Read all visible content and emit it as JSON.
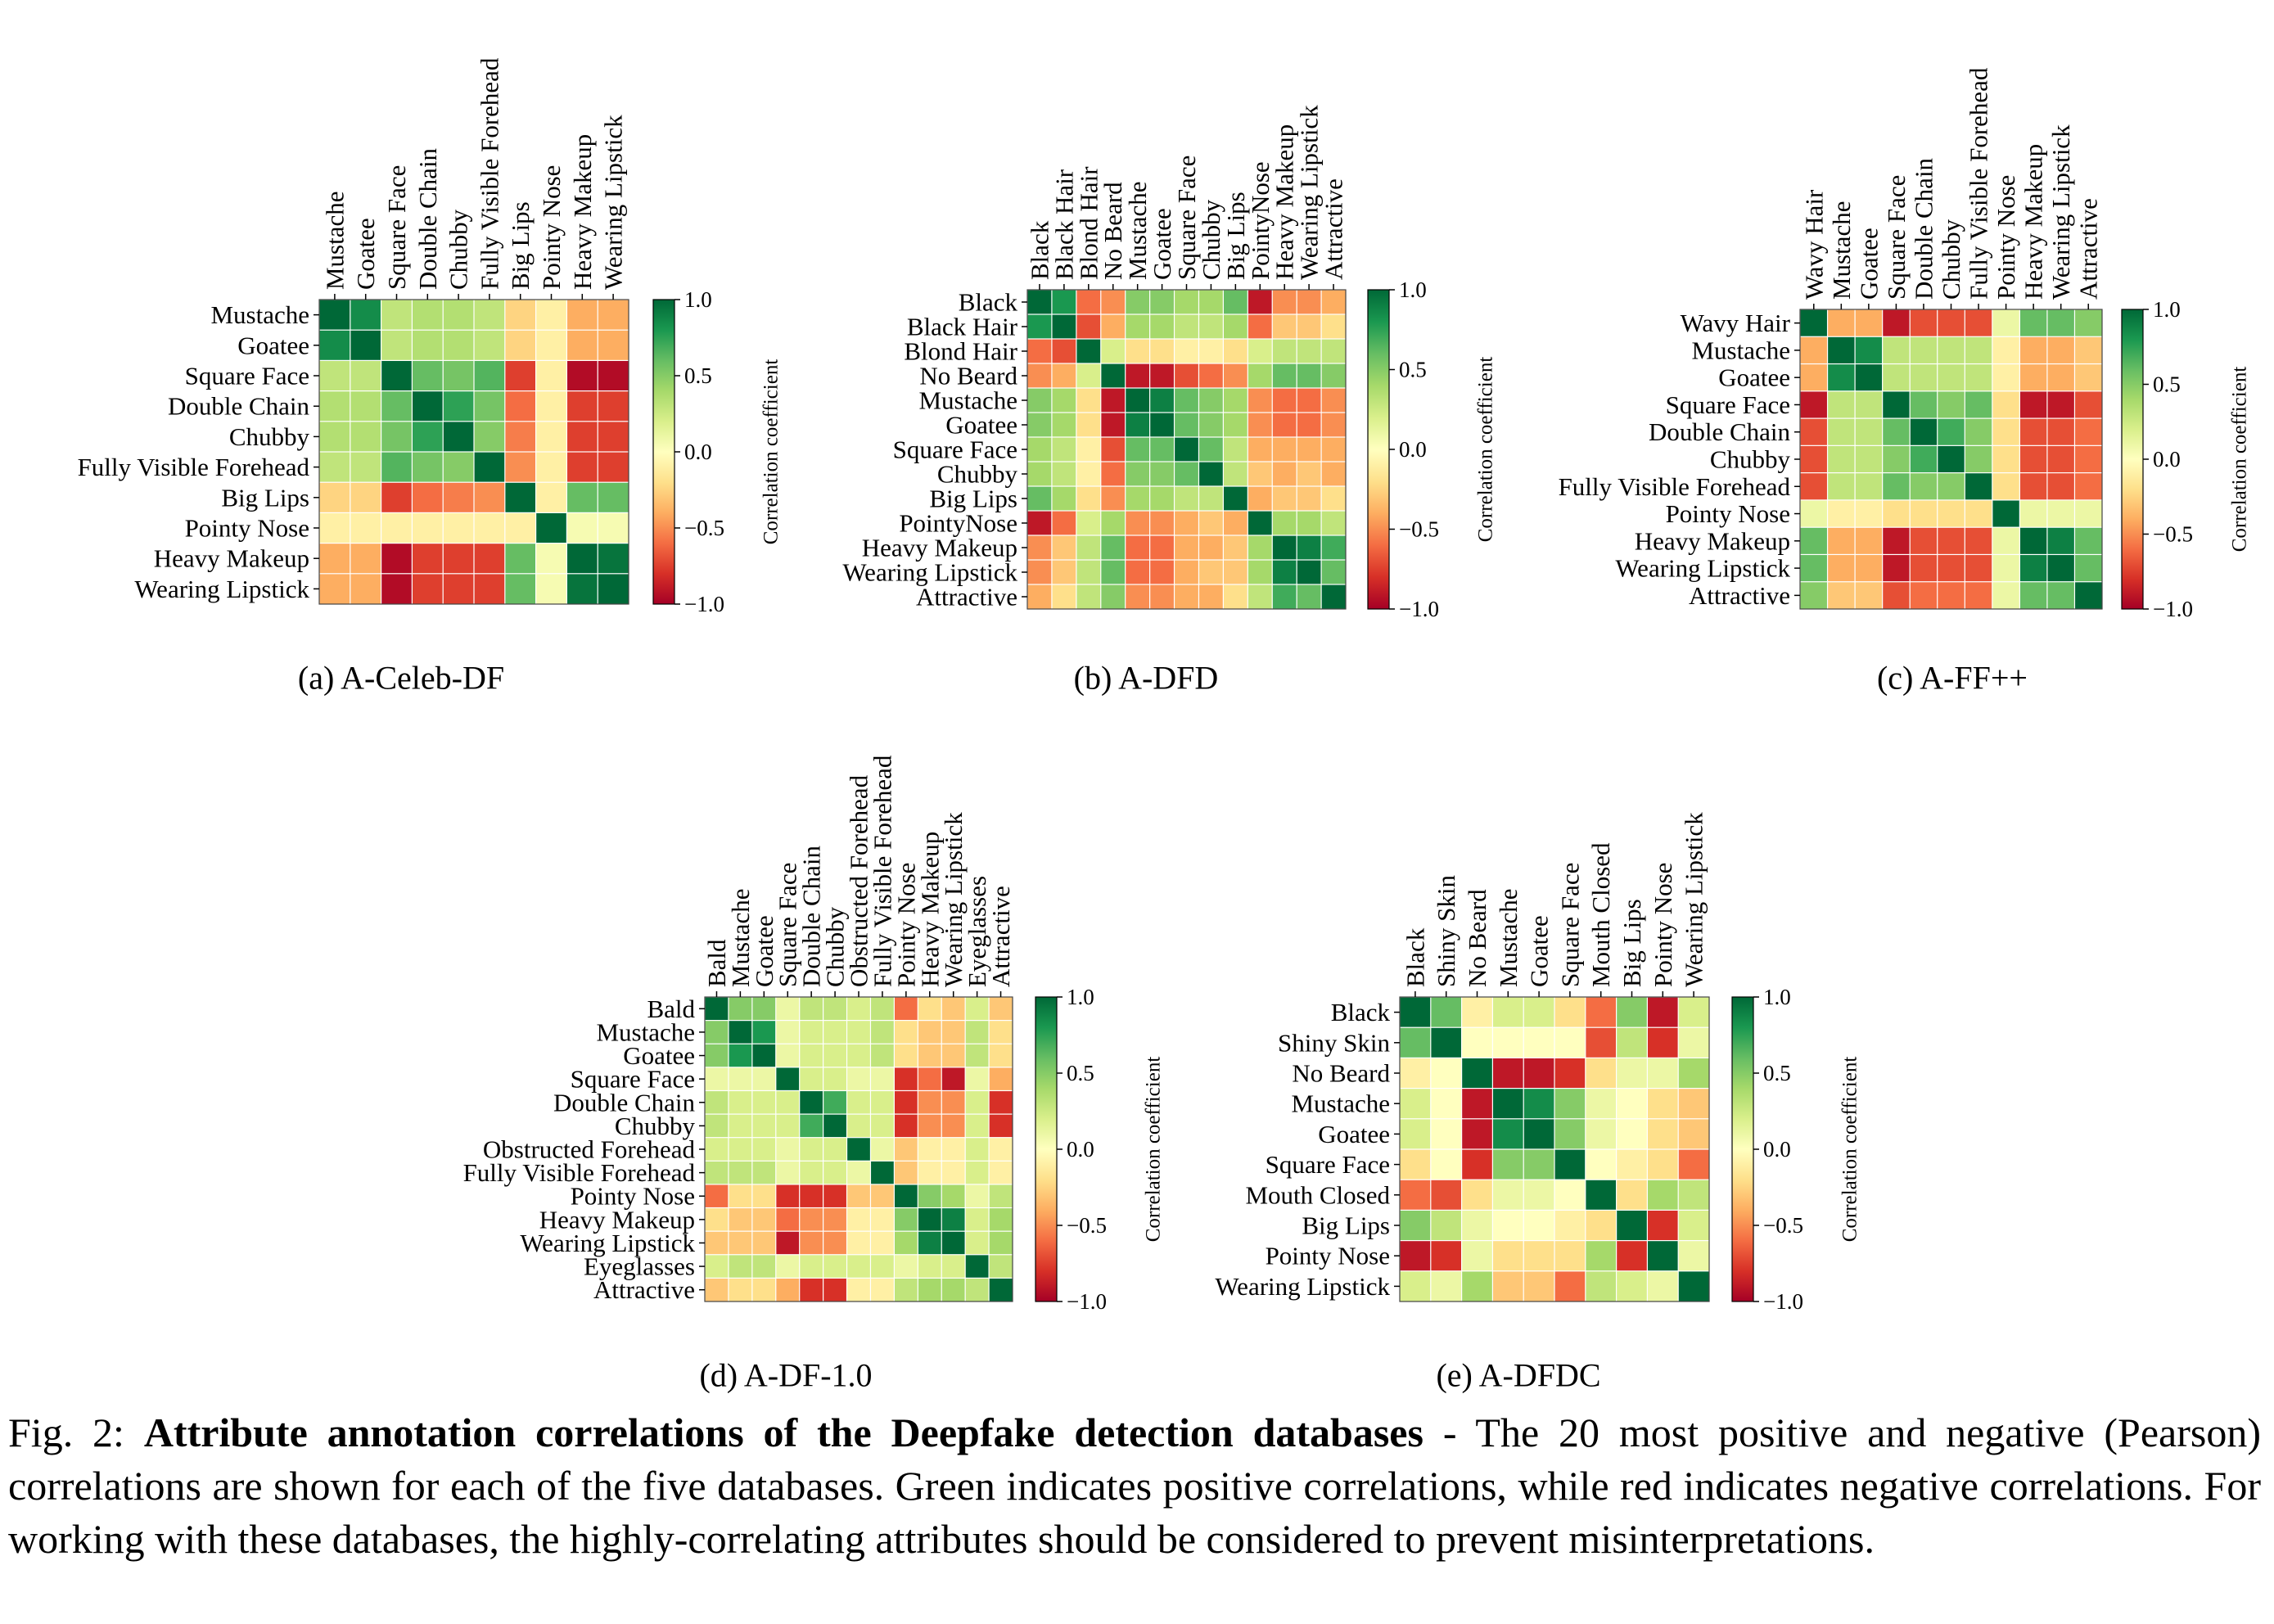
{
  "figure_number": "Fig. 2:",
  "figure_title": "Attribute annotation correlations of the Deepfake detection databases",
  "figure_description": "- The 20 most positive and negative (Pearson) correlations are shown for each of the five databases. Green indicates positive correlations, while red indicates negative correlations. For working with these databases, the highly-correlating attributes should be considered to prevent misinterpretations.",
  "colors": {
    "stops": [
      "#a50026",
      "#d73027",
      "#f46d43",
      "#fdae61",
      "#fee08b",
      "#ffffbf",
      "#d9ef8b",
      "#a6d96a",
      "#66bd63",
      "#1a9850",
      "#006837"
    ]
  },
  "chart_data": [
    {
      "type": "heatmap",
      "caption": "(a) A-Celeb-DF",
      "colorbar_label": "Correlation coefficient",
      "colorbar_ticks": [
        "1.0",
        "0.5",
        "0.0",
        "−0.5",
        "−1.0"
      ],
      "vlim": [
        -1,
        1
      ],
      "labels": [
        "Mustache",
        "Goatee",
        "Square Face",
        "Double Chain",
        "Chubby",
        "Fully Visible Forehead",
        "Big Lips",
        "Pointy Nose",
        "Heavy Makeup",
        "Wearing Lipstick"
      ],
      "values": [
        [
          1,
          0.85,
          0.3,
          0.35,
          0.35,
          0.3,
          -0.25,
          -0.1,
          -0.4,
          -0.4
        ],
        [
          0.85,
          1,
          0.3,
          0.35,
          0.35,
          0.3,
          -0.25,
          -0.1,
          -0.4,
          -0.4
        ],
        [
          0.3,
          0.3,
          1,
          0.6,
          0.55,
          0.65,
          -0.75,
          -0.1,
          -0.95,
          -0.95
        ],
        [
          0.35,
          0.35,
          0.6,
          1,
          0.75,
          0.55,
          -0.6,
          -0.1,
          -0.75,
          -0.75
        ],
        [
          0.35,
          0.35,
          0.55,
          0.75,
          1,
          0.5,
          -0.55,
          -0.1,
          -0.75,
          -0.75
        ],
        [
          0.3,
          0.3,
          0.65,
          0.55,
          0.5,
          1,
          -0.5,
          -0.1,
          -0.75,
          -0.75
        ],
        [
          -0.25,
          -0.25,
          -0.75,
          -0.6,
          -0.55,
          -0.5,
          1,
          -0.1,
          0.6,
          0.6
        ],
        [
          -0.1,
          -0.1,
          -0.1,
          -0.1,
          -0.1,
          -0.1,
          -0.1,
          1,
          0.05,
          0.05
        ],
        [
          -0.4,
          -0.4,
          -0.95,
          -0.75,
          -0.75,
          -0.75,
          0.6,
          0.05,
          1,
          0.95
        ],
        [
          -0.4,
          -0.4,
          -0.95,
          -0.75,
          -0.75,
          -0.75,
          0.6,
          0.05,
          0.95,
          1
        ]
      ]
    },
    {
      "type": "heatmap",
      "caption": "(b) A-DFD",
      "colorbar_label": "Correlation coefficient",
      "colorbar_ticks": [
        "1.0",
        "0.5",
        "0.0",
        "−0.5",
        "−1.0"
      ],
      "vlim": [
        -1,
        1
      ],
      "labels": [
        "Black",
        "Black Hair",
        "Blond Hair",
        "No Beard",
        "Mustache",
        "Goatee",
        "Square Face",
        "Chubby",
        "Big Lips",
        "PointyNose",
        "Heavy Makeup",
        "Wearing Lipstick",
        "Attractive"
      ],
      "values": [
        [
          1,
          0.8,
          -0.6,
          -0.5,
          0.5,
          0.5,
          0.4,
          0.4,
          0.6,
          -0.9,
          -0.5,
          -0.5,
          -0.4
        ],
        [
          0.8,
          1,
          -0.7,
          -0.4,
          0.4,
          0.4,
          0.3,
          0.3,
          0.4,
          -0.6,
          -0.3,
          -0.3,
          -0.2
        ],
        [
          -0.6,
          -0.7,
          1,
          0.2,
          -0.2,
          -0.2,
          -0.1,
          -0.1,
          -0.2,
          0.2,
          0.3,
          0.3,
          0.3
        ],
        [
          -0.5,
          -0.4,
          0.2,
          1,
          -0.9,
          -0.9,
          -0.7,
          -0.6,
          -0.5,
          0.4,
          0.6,
          0.6,
          0.5
        ],
        [
          0.5,
          0.4,
          -0.2,
          -0.9,
          1,
          0.9,
          0.6,
          0.5,
          0.4,
          -0.5,
          -0.6,
          -0.6,
          -0.5
        ],
        [
          0.5,
          0.4,
          -0.2,
          -0.9,
          0.9,
          1,
          0.6,
          0.5,
          0.4,
          -0.5,
          -0.6,
          -0.6,
          -0.5
        ],
        [
          0.4,
          0.3,
          -0.1,
          -0.7,
          0.6,
          0.6,
          1,
          0.6,
          0.3,
          -0.4,
          -0.4,
          -0.4,
          -0.4
        ],
        [
          0.4,
          0.3,
          -0.1,
          -0.6,
          0.5,
          0.5,
          0.6,
          1,
          0.3,
          -0.3,
          -0.4,
          -0.3,
          -0.4
        ],
        [
          0.6,
          0.4,
          -0.2,
          -0.5,
          0.4,
          0.4,
          0.3,
          0.3,
          1,
          -0.4,
          -0.3,
          -0.3,
          -0.2
        ],
        [
          -0.9,
          -0.6,
          0.2,
          0.4,
          -0.5,
          -0.5,
          -0.4,
          -0.3,
          -0.4,
          1,
          0.4,
          0.4,
          0.3
        ],
        [
          -0.5,
          -0.3,
          0.3,
          0.6,
          -0.6,
          -0.6,
          -0.4,
          -0.4,
          -0.3,
          0.4,
          1,
          0.9,
          0.7
        ],
        [
          -0.5,
          -0.3,
          0.3,
          0.6,
          -0.6,
          -0.6,
          -0.4,
          -0.3,
          -0.3,
          0.4,
          0.9,
          1,
          0.6
        ],
        [
          -0.4,
          -0.2,
          0.3,
          0.5,
          -0.5,
          -0.5,
          -0.4,
          -0.4,
          -0.2,
          0.3,
          0.7,
          0.6,
          1
        ]
      ]
    },
    {
      "type": "heatmap",
      "caption": "(c) A-FF++",
      "colorbar_label": "Correlation coefficient",
      "colorbar_ticks": [
        "1.0",
        "0.5",
        "0.0",
        "−0.5",
        "−1.0"
      ],
      "vlim": [
        -1,
        1
      ],
      "labels": [
        "Wavy Hair",
        "Mustache",
        "Goatee",
        "Square Face",
        "Double Chain",
        "Chubby",
        "Fully Visible Forehead",
        "Pointy Nose",
        "Heavy Makeup",
        "Wearing Lipstick",
        "Attractive"
      ],
      "values": [
        [
          1,
          -0.4,
          -0.4,
          -0.9,
          -0.7,
          -0.7,
          -0.7,
          0.1,
          0.6,
          0.6,
          0.5
        ],
        [
          -0.4,
          1,
          0.85,
          0.3,
          0.3,
          0.3,
          0.3,
          -0.1,
          -0.4,
          -0.4,
          -0.3
        ],
        [
          -0.4,
          0.85,
          1,
          0.3,
          0.3,
          0.3,
          0.3,
          -0.1,
          -0.4,
          -0.4,
          -0.3
        ],
        [
          -0.9,
          0.3,
          0.3,
          1,
          0.6,
          0.5,
          0.6,
          -0.2,
          -0.9,
          -0.9,
          -0.7
        ],
        [
          -0.7,
          0.3,
          0.3,
          0.6,
          1,
          0.7,
          0.5,
          -0.2,
          -0.7,
          -0.7,
          -0.6
        ],
        [
          -0.7,
          0.3,
          0.3,
          0.5,
          0.7,
          1,
          0.5,
          -0.2,
          -0.7,
          -0.7,
          -0.6
        ],
        [
          -0.7,
          0.3,
          0.3,
          0.6,
          0.5,
          0.5,
          1,
          -0.2,
          -0.7,
          -0.7,
          -0.6
        ],
        [
          0.1,
          -0.1,
          -0.1,
          -0.2,
          -0.2,
          -0.2,
          -0.2,
          1,
          0.1,
          0.1,
          0.1
        ],
        [
          0.6,
          -0.4,
          -0.4,
          -0.9,
          -0.7,
          -0.7,
          -0.7,
          0.1,
          1,
          0.9,
          0.6
        ],
        [
          0.6,
          -0.4,
          -0.4,
          -0.9,
          -0.7,
          -0.7,
          -0.7,
          0.1,
          0.9,
          1,
          0.6
        ],
        [
          0.5,
          -0.3,
          -0.3,
          -0.7,
          -0.6,
          -0.6,
          -0.6,
          0.1,
          0.6,
          0.6,
          1
        ]
      ]
    },
    {
      "type": "heatmap",
      "caption": "(d) A-DF-1.0",
      "colorbar_label": "Correlation coefficient",
      "colorbar_ticks": [
        "1.0",
        "0.5",
        "0.0",
        "−0.5",
        "−1.0"
      ],
      "vlim": [
        -1,
        1
      ],
      "labels": [
        "Bald",
        "Mustache",
        "Goatee",
        "Square Face",
        "Double Chain",
        "Chubby",
        "Obstructed Forehead",
        "Fully Visible Forehead",
        "Pointy Nose",
        "Heavy Makeup",
        "Wearing Lipstick",
        "Eyeglasses",
        "Attractive"
      ],
      "values": [
        [
          1,
          0.5,
          0.5,
          0.1,
          0.3,
          0.3,
          0.2,
          0.3,
          -0.6,
          -0.2,
          -0.3,
          0.2,
          -0.3
        ],
        [
          0.5,
          1,
          0.8,
          0.1,
          0.2,
          0.2,
          0.2,
          0.3,
          -0.2,
          -0.3,
          -0.3,
          0.3,
          -0.2
        ],
        [
          0.5,
          0.8,
          1,
          0.1,
          0.2,
          0.2,
          0.2,
          0.3,
          -0.2,
          -0.3,
          -0.3,
          0.3,
          -0.2
        ],
        [
          0.1,
          0.1,
          0.1,
          1,
          0.2,
          0.2,
          0.1,
          0.1,
          -0.8,
          -0.6,
          -0.9,
          0.1,
          -0.4
        ],
        [
          0.3,
          0.2,
          0.2,
          0.2,
          1,
          0.7,
          0.2,
          0.2,
          -0.8,
          -0.5,
          -0.5,
          0.2,
          -0.8
        ],
        [
          0.3,
          0.2,
          0.2,
          0.2,
          0.7,
          1,
          0.2,
          0.2,
          -0.8,
          -0.5,
          -0.5,
          0.2,
          -0.8
        ],
        [
          0.2,
          0.2,
          0.2,
          0.1,
          0.2,
          0.2,
          1,
          0.1,
          -0.3,
          -0.1,
          -0.1,
          0.2,
          -0.1
        ],
        [
          0.3,
          0.3,
          0.3,
          0.1,
          0.2,
          0.2,
          0.1,
          1,
          -0.3,
          -0.1,
          -0.1,
          0.2,
          -0.1
        ],
        [
          -0.6,
          -0.2,
          -0.2,
          -0.8,
          -0.8,
          -0.8,
          -0.3,
          -0.3,
          1,
          0.5,
          0.4,
          0.1,
          0.3
        ],
        [
          -0.2,
          -0.3,
          -0.3,
          -0.6,
          -0.5,
          -0.5,
          -0.1,
          -0.1,
          0.5,
          1,
          0.9,
          0.2,
          0.4
        ],
        [
          -0.3,
          -0.3,
          -0.3,
          -0.9,
          -0.5,
          -0.5,
          -0.1,
          -0.1,
          0.4,
          0.9,
          1,
          0.2,
          0.4
        ],
        [
          0.2,
          0.3,
          0.3,
          0.1,
          0.2,
          0.2,
          0.2,
          0.2,
          0.1,
          0.2,
          0.2,
          1,
          0.3
        ],
        [
          -0.3,
          -0.2,
          -0.2,
          -0.4,
          -0.8,
          -0.8,
          -0.1,
          -0.1,
          0.3,
          0.4,
          0.4,
          0.3,
          1
        ]
      ]
    },
    {
      "type": "heatmap",
      "caption": "(e) A-DFDC",
      "colorbar_label": "Correlation coefficient",
      "colorbar_ticks": [
        "1.0",
        "0.5",
        "0.0",
        "−0.5",
        "−1.0"
      ],
      "vlim": [
        -1,
        1
      ],
      "labels": [
        "Black",
        "Shiny Skin",
        "No Beard",
        "Mustache",
        "Goatee",
        "Square Face",
        "Mouth Closed",
        "Big Lips",
        "Pointy Nose",
        "Wearing Lipstick"
      ],
      "values": [
        [
          1,
          0.6,
          -0.1,
          0.2,
          0.2,
          -0.2,
          -0.6,
          0.5,
          -0.9,
          0.2
        ],
        [
          0.6,
          1,
          0.0,
          0.0,
          0.0,
          0.0,
          -0.7,
          0.3,
          -0.8,
          0.1
        ],
        [
          -0.1,
          0.0,
          1,
          -0.9,
          -0.9,
          -0.8,
          -0.2,
          0.1,
          0.1,
          0.4
        ],
        [
          0.2,
          0.0,
          -0.9,
          1,
          0.85,
          0.5,
          0.1,
          0.0,
          -0.2,
          -0.3
        ],
        [
          0.2,
          0.0,
          -0.9,
          0.85,
          1,
          0.5,
          0.1,
          0.0,
          -0.2,
          -0.3
        ],
        [
          -0.2,
          0.0,
          -0.8,
          0.5,
          0.5,
          1,
          0.0,
          -0.1,
          -0.2,
          -0.6
        ],
        [
          -0.6,
          -0.7,
          -0.2,
          0.1,
          0.1,
          0.0,
          1,
          -0.2,
          0.4,
          0.3
        ],
        [
          0.5,
          0.3,
          0.1,
          0.0,
          0.0,
          -0.1,
          -0.2,
          1,
          -0.8,
          0.2
        ],
        [
          -0.9,
          -0.8,
          0.1,
          -0.2,
          -0.2,
          -0.2,
          0.4,
          -0.8,
          1,
          0.1
        ],
        [
          0.2,
          0.1,
          0.4,
          -0.3,
          -0.3,
          -0.6,
          0.3,
          0.2,
          0.1,
          1
        ]
      ]
    }
  ]
}
